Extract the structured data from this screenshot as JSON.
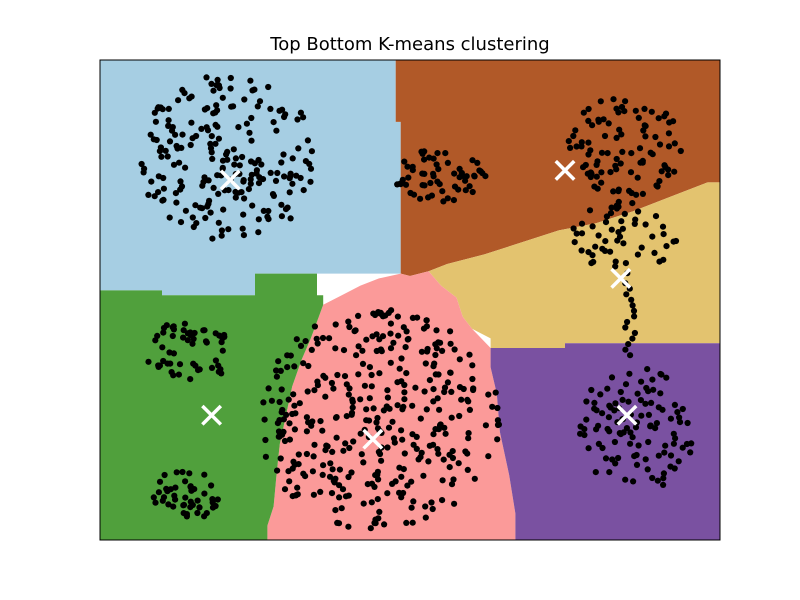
{
  "chart_data": {
    "type": "scatter",
    "title": "Top Bottom K-means clustering",
    "xlabel": "",
    "ylabel": "",
    "xlim": [
      0,
      10
    ],
    "ylim": [
      0,
      10
    ],
    "ticks_visible": false,
    "region_colors": {
      "light-blue": "#a6cee3",
      "brown": "#b15928",
      "sand": "#e3c36f",
      "pink": "#fb9a99",
      "green": "#50a03c",
      "purple": "#7a51a1"
    },
    "regions": [
      {
        "name": "light-blue",
        "polygon": [
          [
            0,
            10
          ],
          [
            4.77,
            10
          ],
          [
            4.77,
            8.71
          ],
          [
            4.85,
            8.71
          ],
          [
            4.85,
            5.55
          ],
          [
            3.5,
            5.55
          ],
          [
            2.5,
            5.55
          ],
          [
            2.5,
            5.1
          ],
          [
            1.0,
            5.1
          ],
          [
            1.0,
            5.2
          ],
          [
            0,
            5.2
          ]
        ]
      },
      {
        "name": "brown",
        "polygon": [
          [
            4.77,
            10
          ],
          [
            10,
            10
          ],
          [
            10,
            7.45
          ],
          [
            9.8,
            7.45
          ],
          [
            9.2,
            7.15
          ],
          [
            8.6,
            6.85
          ],
          [
            8.0,
            6.6
          ],
          [
            7.4,
            6.45
          ],
          [
            6.8,
            6.2
          ],
          [
            6.2,
            5.95
          ],
          [
            5.6,
            5.75
          ],
          [
            5.3,
            5.6
          ],
          [
            5.0,
            5.5
          ],
          [
            4.85,
            5.55
          ],
          [
            4.85,
            8.71
          ],
          [
            4.77,
            8.71
          ]
        ]
      },
      {
        "name": "sand",
        "polygon": [
          [
            10,
            7.45
          ],
          [
            10,
            4.1
          ],
          [
            7.5,
            4.1
          ],
          [
            7.5,
            4.0
          ],
          [
            6.3,
            4.0
          ],
          [
            6.3,
            4.2
          ],
          [
            6.0,
            4.4
          ],
          [
            5.85,
            4.65
          ],
          [
            5.75,
            5.05
          ],
          [
            5.5,
            5.3
          ],
          [
            5.3,
            5.6
          ],
          [
            5.6,
            5.75
          ],
          [
            6.2,
            5.95
          ],
          [
            6.8,
            6.2
          ],
          [
            7.4,
            6.45
          ],
          [
            8.0,
            6.6
          ],
          [
            8.6,
            6.85
          ],
          [
            9.2,
            7.15
          ],
          [
            9.8,
            7.45
          ]
        ]
      },
      {
        "name": "pink",
        "polygon": [
          [
            2.7,
            0
          ],
          [
            6.7,
            0
          ],
          [
            6.7,
            0.55
          ],
          [
            6.6,
            1.35
          ],
          [
            6.45,
            2.25
          ],
          [
            6.4,
            3.05
          ],
          [
            6.3,
            3.6
          ],
          [
            6.3,
            4.0
          ],
          [
            6.0,
            4.4
          ],
          [
            5.85,
            4.65
          ],
          [
            5.75,
            5.05
          ],
          [
            5.5,
            5.3
          ],
          [
            5.3,
            5.6
          ],
          [
            5.0,
            5.5
          ],
          [
            4.85,
            5.55
          ],
          [
            4.5,
            5.45
          ],
          [
            4.2,
            5.3
          ],
          [
            3.9,
            5.1
          ],
          [
            3.6,
            4.9
          ],
          [
            3.5,
            4.55
          ],
          [
            3.4,
            4.2
          ],
          [
            3.25,
            3.75
          ],
          [
            3.1,
            3.2
          ],
          [
            3.0,
            2.6
          ],
          [
            2.9,
            2.0
          ],
          [
            2.85,
            1.4
          ],
          [
            2.8,
            0.7
          ],
          [
            2.7,
            0.3
          ]
        ]
      },
      {
        "name": "green",
        "polygon": [
          [
            0,
            0
          ],
          [
            2.7,
            0
          ],
          [
            2.7,
            0.3
          ],
          [
            2.8,
            0.7
          ],
          [
            2.85,
            1.4
          ],
          [
            2.9,
            2.0
          ],
          [
            3.0,
            2.6
          ],
          [
            3.1,
            3.2
          ],
          [
            3.25,
            3.75
          ],
          [
            3.4,
            4.2
          ],
          [
            3.5,
            4.55
          ],
          [
            3.6,
            4.9
          ],
          [
            3.6,
            5.1
          ],
          [
            3.5,
            5.1
          ],
          [
            3.5,
            5.55
          ],
          [
            2.5,
            5.55
          ],
          [
            2.5,
            5.1
          ],
          [
            1.0,
            5.1
          ],
          [
            1.0,
            5.2
          ],
          [
            0,
            5.2
          ]
        ]
      },
      {
        "name": "purple",
        "polygon": [
          [
            6.3,
            4.0
          ],
          [
            7.5,
            4.0
          ],
          [
            7.5,
            4.1
          ],
          [
            10,
            4.1
          ],
          [
            10,
            0
          ],
          [
            6.7,
            0
          ],
          [
            6.7,
            0.55
          ],
          [
            6.6,
            1.35
          ],
          [
            6.45,
            2.25
          ],
          [
            6.4,
            3.05
          ],
          [
            6.3,
            3.6
          ]
        ]
      }
    ],
    "point_clusters": [
      {
        "name": "upper-left",
        "center": [
          2.1,
          7.95
        ],
        "spread": [
          1.5,
          1.75
        ],
        "shape": "ellipse",
        "count": 210
      },
      {
        "name": "small-middle-top",
        "center": [
          5.5,
          7.6
        ],
        "spread": [
          0.8,
          0.55
        ],
        "shape": "ellipse",
        "count": 60
      },
      {
        "name": "upper-right",
        "center": [
          8.5,
          8.2
        ],
        "spread": [
          0.95,
          1.05
        ],
        "shape": "ellipse",
        "count": 95
      },
      {
        "name": "right-middle",
        "center": [
          8.45,
          6.3
        ],
        "spread": [
          0.85,
          0.75
        ],
        "shape": "ellipse",
        "count": 55
      },
      {
        "name": "bridge",
        "center": [
          8.55,
          4.6
        ],
        "spread": [
          0.08,
          0.75
        ],
        "shape": "line",
        "count": 14
      },
      {
        "name": "lower-right",
        "center": [
          8.65,
          2.3
        ],
        "spread": [
          0.95,
          1.3
        ],
        "shape": "ellipse",
        "count": 110
      },
      {
        "name": "lower-middle-big",
        "center": [
          4.5,
          2.5
        ],
        "spread": [
          1.95,
          2.3
        ],
        "shape": "ellipse",
        "count": 360
      },
      {
        "name": "small-green-upper",
        "center": [
          1.4,
          3.9
        ],
        "spread": [
          0.75,
          0.65
        ],
        "shape": "ellipse",
        "count": 55
      },
      {
        "name": "small-green-lower",
        "center": [
          1.4,
          0.95
        ],
        "spread": [
          0.55,
          0.55
        ],
        "shape": "ellipse",
        "count": 45
      }
    ],
    "centroids": [
      {
        "name": "centroid-light-blue",
        "x": 2.1,
        "y": 7.5
      },
      {
        "name": "centroid-brown",
        "x": 7.5,
        "y": 7.7
      },
      {
        "name": "centroid-sand",
        "x": 8.4,
        "y": 5.45
      },
      {
        "name": "centroid-pink",
        "x": 4.4,
        "y": 2.1
      },
      {
        "name": "centroid-green",
        "x": 1.8,
        "y": 2.6
      },
      {
        "name": "centroid-purple",
        "x": 8.5,
        "y": 2.6
      }
    ],
    "marker_colors": {
      "points": "#000000",
      "centroids": "#ffffff"
    }
  }
}
